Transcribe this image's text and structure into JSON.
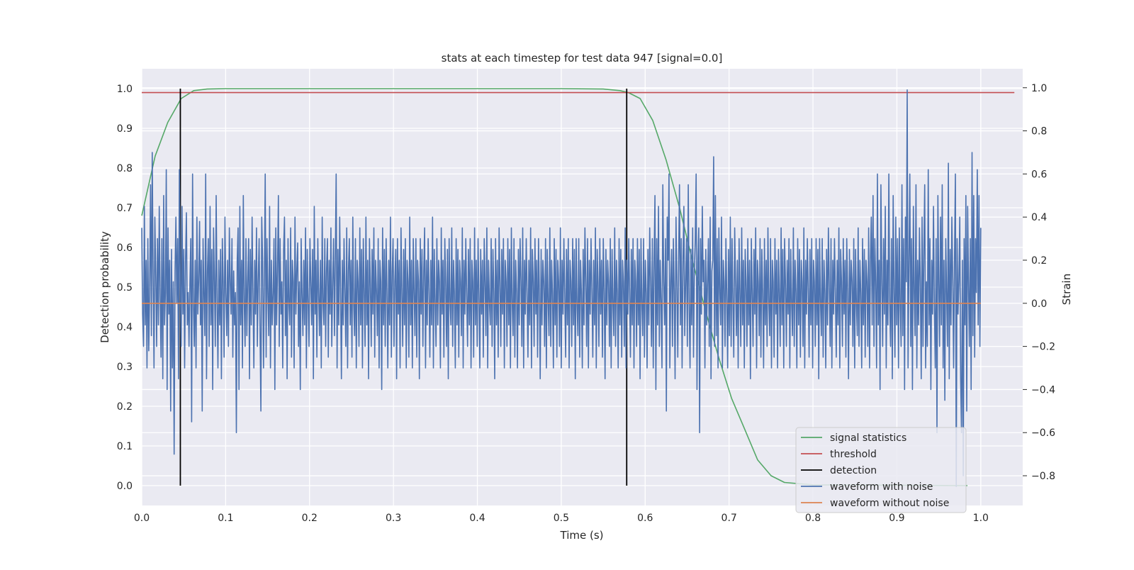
{
  "chart_data": {
    "type": "line",
    "title": "stats at each timestep for test data 947 [signal=0.0]",
    "xlabel": "Time (s)",
    "ylabel": "Detection probability",
    "ylabel_right": "Strain",
    "xlim": [
      0.0,
      1.05
    ],
    "ylim": [
      -0.05,
      1.05
    ],
    "ylim_right": [
      -0.938,
      1.088
    ],
    "grid": true,
    "x_ticks": [
      "0.0",
      "0.1",
      "0.2",
      "0.3",
      "0.4",
      "0.5",
      "0.6",
      "0.7",
      "0.8",
      "0.9",
      "1.0"
    ],
    "y_ticks": [
      "0.0",
      "0.1",
      "0.2",
      "0.3",
      "0.4",
      "0.5",
      "0.6",
      "0.7",
      "0.8",
      "0.9",
      "1.0"
    ],
    "y_ticks_right": [
      "1.0",
      "0.8",
      "0.6",
      "0.4",
      "0.2",
      "0.0",
      "−0.2",
      "−0.4",
      "−0.6",
      "−0.8"
    ],
    "legend_position": "lower-right",
    "series": [
      {
        "name": "signal statistics",
        "axis": "left",
        "color": "#55a868",
        "x": [
          0.0,
          0.016,
          0.031,
          0.047,
          0.062,
          0.078,
          0.1,
          0.2,
          0.3,
          0.4,
          0.5,
          0.55,
          0.57,
          0.58,
          0.594,
          0.609,
          0.625,
          0.641,
          0.656,
          0.672,
          0.688,
          0.703,
          0.719,
          0.734,
          0.75,
          0.766,
          0.8,
          0.9,
          0.984
        ],
        "values": [
          0.68,
          0.83,
          0.915,
          0.975,
          0.995,
          0.999,
          1.0,
          1.0,
          1.0,
          1.0,
          1.0,
          0.999,
          0.995,
          0.99,
          0.975,
          0.92,
          0.82,
          0.7,
          0.57,
          0.44,
          0.32,
          0.22,
          0.14,
          0.065,
          0.025,
          0.008,
          0.002,
          0.001,
          0.0
        ]
      },
      {
        "name": "threshold",
        "axis": "left",
        "color": "#c44e52",
        "x": [
          0.0,
          1.04
        ],
        "values": [
          0.99,
          0.99
        ]
      },
      {
        "name": "detection",
        "axis": "left",
        "color": "#000000",
        "segments": [
          {
            "x": 0.046,
            "y0": 0.0,
            "y1": 1.0
          },
          {
            "x": 0.578,
            "y0": 0.0,
            "y1": 1.0
          }
        ]
      },
      {
        "name": "waveform with noise",
        "axis": "right",
        "color": "#4c72b0",
        "x_start": 0.0,
        "x_end": 1.0,
        "values": [
          0.35,
          -0.05,
          -0.2,
          0.45,
          -0.1,
          0.2,
          -0.3,
          0.3,
          -0.22,
          0.05,
          0.55,
          -0.15,
          0.7,
          0.1,
          -0.3,
          0.4,
          0.12,
          -0.2,
          0.3,
          -0.1,
          0.45,
          0.05,
          -0.25,
          0.3,
          -0.35,
          0.5,
          -0.1,
          0.05,
          0.62,
          -0.4,
          0.35,
          -0.05,
          0.2,
          -0.5,
          0.25,
          -0.3,
          0.1,
          -0.7,
          0.15,
          0.4,
          0.0,
          0.3,
          -0.35,
          0.62,
          0.1,
          -0.2,
          0.45,
          -0.05,
          0.25,
          -0.3,
          0.2,
          0.42,
          -0.1,
          0.05,
          -0.2,
          0.1,
          0.3,
          -0.55,
          0.6,
          0.0,
          -0.2,
          0.2,
          -0.3,
          0.4,
          -0.05,
          0.1,
          0.38,
          -0.1,
          0.2,
          -0.5,
          0.3,
          0.05,
          -0.15,
          0.6,
          -0.35,
          0.15,
          0.3,
          -0.2,
          0.45,
          -0.1,
          0.25,
          -0.4,
          0.35,
          0.1,
          -0.2,
          0.5,
          0.0,
          -0.3,
          0.2,
          -0.1,
          0.25,
          -0.35,
          0.3,
          0.1,
          -0.25,
          0.4,
          0.05,
          -0.15,
          0.2,
          -0.2,
          0.35,
          0.1,
          -0.05,
          0.3,
          -0.25,
          0.15,
          -0.1,
          0.05,
          -0.6,
          0.2,
          0.35,
          -0.4,
          0.45,
          -0.1,
          0.2,
          -0.3,
          0.5,
          0.0,
          -0.2,
          0.3,
          -0.15,
          0.1,
          0.3,
          -0.35,
          0.25,
          -0.1,
          0.4,
          0.05,
          -0.3,
          0.2,
          -0.05,
          0.35,
          -0.2,
          0.1,
          0.3,
          -0.1,
          -0.5,
          0.4,
          0.2,
          -0.3,
          0.1,
          0.6,
          -0.25,
          0.3,
          0.05,
          -0.15,
          0.45,
          -0.3,
          0.2,
          -0.1,
          0.05,
          0.3,
          -0.4,
          0.35,
          -0.1,
          0.15,
          0.5,
          -0.2,
          0.3,
          -0.05,
          0.1,
          -0.3,
          0.25,
          0.4,
          -0.15,
          0.2,
          -0.35,
          0.3,
          0.0,
          -0.1,
          0.35,
          -0.25,
          0.2,
          0.1,
          -0.3,
          0.4,
          -0.05,
          0.15,
          0.28,
          -0.2,
          0.1,
          -0.4,
          0.3,
          0.05,
          -0.15,
          0.2,
          -0.1,
          0.35,
          -0.3,
          0.25,
          0.0,
          -0.2,
          0.3,
          0.1,
          -0.1,
          0.25,
          -0.35,
          0.45,
          -0.05,
          0.2,
          -0.25,
          0.3,
          0.05,
          -0.15,
          0.2,
          -0.3,
          0.4,
          0.0,
          -0.1,
          0.3,
          -0.2,
          0.15,
          0.3,
          -0.25,
          0.2,
          -0.05,
          0.35,
          -0.2,
          0.1,
          0.3,
          -0.15,
          0.2,
          0.6,
          -0.3,
          0.25,
          -0.1,
          0.4,
          0.05,
          -0.35,
          0.2,
          -0.1,
          0.3,
          0.05,
          -0.2,
          0.35,
          -0.3,
          0.15,
          0.3,
          -0.1,
          0.2,
          -0.25,
          0.4,
          0.0,
          -0.15,
          0.3,
          -0.3,
          0.2,
          0.1,
          -0.2,
          0.35,
          -0.1,
          0.25,
          -0.3,
          0.3,
          0.05,
          -0.2,
          0.4,
          -0.1,
          0.2,
          -0.35,
          0.3,
          0.1,
          -0.2,
          0.25,
          -0.05,
          0.35,
          -0.25,
          0.2,
          0.05,
          -0.15,
          0.3,
          -0.3,
          0.2,
          0.1,
          -0.4,
          0.35,
          -0.1,
          0.25,
          -0.2,
          0.3,
          0.05,
          -0.3,
          0.2,
          -0.1,
          0.4,
          -0.25,
          0.15,
          0.3,
          -0.2,
          0.1,
          0.25,
          -0.35,
          0.3,
          -0.05,
          0.2,
          -0.3,
          0.35,
          0.05,
          -0.2,
          0.25,
          -0.1,
          0.3,
          -0.3,
          0.2,
          0.1,
          -0.25,
          0.4,
          -0.1,
          0.2,
          -0.3,
          0.3,
          0.05,
          -0.15,
          0.3,
          -0.25,
          0.2,
          0.1,
          -0.35,
          0.3,
          -0.05,
          0.25,
          -0.2,
          0.15,
          0.35,
          -0.3,
          0.2,
          -0.1,
          0.3,
          0.05,
          -0.25,
          0.2,
          -0.1,
          0.4,
          -0.3,
          0.25,
          0.0,
          -0.2,
          0.3,
          -0.1,
          0.2,
          0.1,
          -0.3,
          0.35,
          -0.05,
          0.2,
          -0.25,
          0.3,
          0.1,
          -0.2,
          0.25,
          -0.35,
          0.3,
          0.0,
          -0.1,
          0.35,
          -0.2,
          0.2,
          0.05,
          -0.3,
          0.3,
          -0.1,
          0.25,
          -0.25,
          0.2,
          0.1,
          -0.15,
          0.35,
          -0.3,
          0.2,
          -0.05,
          0.3,
          0.05,
          -0.2,
          0.25,
          -0.1,
          0.3,
          -0.3,
          0.2,
          0.1,
          -0.25,
          0.35,
          -0.1,
          0.2,
          -0.2,
          0.3,
          0.05,
          -0.3,
          0.25,
          -0.05,
          0.2,
          -0.25,
          0.3,
          0.1,
          -0.15,
          0.35,
          -0.3,
          0.2,
          0.0,
          -0.1,
          0.3,
          -0.2,
          0.25,
          0.05,
          -0.35,
          0.3,
          -0.1,
          0.2,
          -0.25,
          0.35,
          0.1,
          -0.2,
          0.25,
          -0.05,
          0.3,
          -0.3,
          0.2,
          0.1,
          -0.2,
          0.3,
          -0.1,
          0.25,
          -0.3,
          0.35,
          0.0,
          -0.15,
          0.3,
          -0.25,
          0.2,
          0.05,
          -0.3,
          0.25,
          -0.1,
          0.3,
          0.1,
          -0.2,
          0.35,
          -0.3,
          0.2,
          -0.05,
          0.3,
          0.05,
          -0.25,
          0.2,
          -0.1,
          0.35,
          -0.3,
          0.25,
          0.1,
          -0.2,
          0.3,
          -0.05,
          0.2,
          -0.25,
          0.3,
          0.05,
          -0.35,
          0.25,
          -0.1,
          0.2,
          0.1,
          -0.2,
          0.3,
          -0.3,
          0.25,
          0.0,
          -0.15,
          0.35,
          -0.2,
          0.2,
          0.05,
          -0.3,
          0.3,
          -0.1,
          0.25,
          -0.25,
          0.2,
          0.1,
          -0.2,
          0.35,
          -0.3,
          0.2,
          -0.05,
          0.3,
          0.05,
          -0.25,
          0.25,
          -0.1,
          0.3,
          -0.3,
          0.2,
          0.1,
          -0.2,
          0.3,
          -0.1,
          0.25,
          -0.35,
          0.3,
          0.0,
          -0.15,
          0.3,
          -0.25,
          0.2,
          0.05,
          -0.3,
          0.25,
          -0.1,
          0.35,
          0.1,
          -0.2,
          0.3,
          -0.3,
          0.2,
          -0.05,
          0.3,
          0.05,
          -0.25,
          0.2,
          -0.1,
          0.35,
          -0.3,
          0.25,
          0.1,
          -0.2,
          0.3,
          -0.05,
          0.2,
          -0.25,
          0.3,
          0.05,
          -0.35,
          0.25,
          -0.1,
          0.2,
          0.1,
          -0.2,
          0.3,
          -0.3,
          0.25,
          0.0,
          -0.15,
          0.35,
          -0.2,
          0.2,
          0.05,
          -0.3,
          0.3,
          -0.1,
          0.25,
          -0.25,
          0.2,
          0.1,
          -0.2,
          0.35,
          -0.3,
          0.2,
          -0.05,
          0.3,
          0.05,
          -0.25,
          0.25,
          -0.1,
          0.3,
          -0.3,
          0.2,
          0.1,
          -0.2,
          0.3,
          -0.1,
          0.25,
          -0.35,
          0.3,
          0.0,
          -0.15,
          0.3,
          -0.25,
          0.2,
          0.05,
          -0.3,
          0.25,
          -0.1,
          0.35,
          0.1,
          -0.2,
          0.3,
          -0.3,
          0.2,
          0.5,
          -0.4,
          0.3,
          -0.1,
          0.45,
          -0.2,
          0.2,
          0.0,
          -0.3,
          0.55,
          0.1,
          -0.1,
          0.3,
          -0.5,
          0.4,
          0.2,
          0.6,
          -0.3,
          0.1,
          0.25,
          -0.2,
          0.3,
          0.05,
          -0.35,
          0.4,
          0.1,
          -0.25,
          0.2,
          0.55,
          -0.1,
          0.3,
          -0.3,
          0.2,
          0.45,
          -0.15,
          0.1,
          0.3,
          -0.2,
          0.55,
          0.0,
          -0.3,
          0.25,
          -0.1,
          0.35,
          -0.25,
          0.15,
          0.3,
          0.6,
          -0.4,
          0.2,
          0.35,
          -0.6,
          0.3,
          -0.05,
          0.45,
          0.1,
          0.2,
          -0.3,
          0.25,
          -0.1,
          0.1,
          0.3,
          -0.2,
          0.4,
          -0.35,
          0.15,
          0.2,
          0.68,
          -0.2,
          0.5,
          -0.15,
          0.3,
          -0.3,
          0.35,
          0.05,
          -0.1,
          0.4,
          -0.3,
          0.2,
          0.1,
          -0.2,
          0.3,
          0.02,
          -0.3,
          0.25,
          -0.15,
          0.4,
          -0.2,
          0.3,
          0.0,
          -0.25,
          0.35,
          0.1,
          -0.15,
          0.2,
          -0.3,
          0.3,
          0.05,
          -0.2,
          0.35,
          -0.1,
          0.2,
          -0.3,
          0.25,
          0.1,
          -0.2,
          0.3,
          -0.1,
          0.2,
          -0.35,
          0.3,
          0.05,
          -0.2,
          0.25,
          -0.05,
          0.35,
          -0.3,
          0.2,
          0.1,
          -0.15,
          0.3,
          -0.25,
          0.25,
          0.05,
          -0.3,
          0.3,
          -0.1,
          0.2,
          -0.2,
          0.35,
          0.0,
          -0.15,
          0.3,
          -0.3,
          0.2,
          0.1,
          -0.25,
          0.3,
          -0.05,
          0.2,
          -0.3,
          0.25,
          0.05,
          -0.2,
          0.35,
          -0.1,
          0.25,
          -0.3,
          0.3,
          0.1,
          -0.2,
          0.2,
          -0.05,
          0.3,
          -0.3,
          0.25,
          0.0,
          -0.15,
          0.35,
          -0.2,
          0.2,
          0.05,
          -0.3,
          0.3,
          -0.1,
          0.25,
          -0.25,
          0.2,
          0.1,
          -0.2,
          0.35,
          -0.3,
          0.2,
          -0.05,
          0.3,
          0.05,
          -0.25,
          0.25,
          -0.1,
          0.3,
          -0.3,
          0.2,
          0.1,
          -0.2,
          0.3,
          -0.1,
          0.25,
          -0.35,
          0.3,
          0.0,
          -0.15,
          0.3,
          -0.25,
          0.2,
          0.05,
          -0.3,
          0.25,
          -0.1,
          0.35,
          0.1,
          -0.2,
          0.3,
          -0.3,
          0.2,
          -0.05,
          0.3,
          0.05,
          -0.25,
          0.2,
          -0.1,
          0.35,
          -0.3,
          0.25,
          0.1,
          -0.2,
          0.3,
          -0.05,
          0.2,
          -0.25,
          0.3,
          0.05,
          -0.35,
          0.25,
          -0.1,
          0.2,
          0.1,
          -0.2,
          0.3,
          -0.3,
          0.25,
          0.0,
          -0.15,
          0.35,
          -0.2,
          0.2,
          0.05,
          -0.3,
          0.3,
          -0.1,
          0.25,
          -0.25,
          0.2,
          0.1,
          -0.2,
          0.35,
          -0.3,
          0.2,
          0.4,
          -0.1,
          0.5,
          -0.2,
          0.3,
          0.1,
          -0.3,
          0.6,
          -0.1,
          0.2,
          -0.4,
          0.55,
          0.1,
          -0.2,
          0.3,
          -0.05,
          0.45,
          -0.3,
          0.2,
          -0.1,
          0.6,
          0.0,
          -0.2,
          0.3,
          -0.35,
          0.5,
          0.05,
          -0.25,
          0.4,
          -0.1,
          0.3,
          -0.3,
          0.35,
          0.0,
          -0.2,
          0.55,
          -0.15,
          0.3,
          -0.4,
          0.4,
          0.1,
          0.99,
          -0.3,
          0.2,
          0.6,
          -0.2,
          0.3,
          -0.4,
          0.45,
          0.05,
          -0.15,
          0.55,
          -0.3,
          0.2,
          -0.1,
          0.35,
          0.1,
          -0.35,
          0.4,
          -0.2,
          0.25,
          0.55,
          -0.3,
          0.1,
          -0.2,
          0.62,
          -0.1,
          0.3,
          -0.4,
          0.2,
          -0.05,
          0.45,
          0.0,
          -0.3,
          0.3,
          -0.6,
          0.5,
          0.1,
          -0.2,
          0.4,
          -0.1,
          0.55,
          -0.3,
          0.2,
          -0.45,
          0.3,
          0.05,
          -0.2,
          0.65,
          -0.35,
          0.25,
          -0.1,
          0.4,
          0.1,
          -0.3,
          0.2,
          0.6,
          -0.85,
          0.3,
          -0.05,
          0.1,
          0.4,
          -0.35,
          -0.6,
          0.2,
          -0.8,
          0.3,
          -0.1,
          0.5,
          -0.5,
          0.45,
          0.1,
          -0.2,
          0.3,
          -0.4,
          0.7,
          -0.15,
          0.5,
          -0.25,
          0.3,
          0.05,
          0.62,
          -0.1,
          0.5,
          -0.2,
          0.35
        ]
      },
      {
        "name": "waveform without noise",
        "axis": "right",
        "color": "#dd8452",
        "x": [
          0.0,
          1.0
        ],
        "values": [
          0.0,
          0.0
        ]
      }
    ]
  }
}
